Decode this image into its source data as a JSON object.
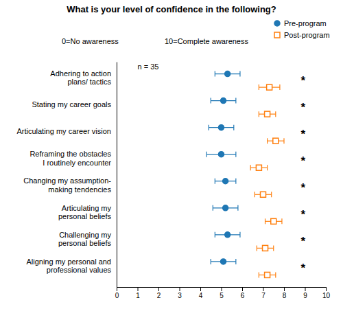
{
  "chart_data": {
    "type": "dot",
    "orientation": "horizontal",
    "title": "What is your level of confidence in the following?",
    "subtitle": [
      "0=No awareness",
      "10=Complete awareness"
    ],
    "categories": [
      "Adhering to action\nplans/ tactics",
      "Stating my career goals",
      "Articulating my career vision",
      "Reframing the obstacles\nI routinely encounter",
      "Changing my assumption-\nmaking tendencies",
      "Articulating my\npersonal beliefs",
      "Challenging my\npersonal beliefs",
      "Aligning my personal and\nprofessional values"
    ],
    "series": [
      {
        "name": "Pre-program",
        "marker": "circle",
        "values": [
          5.3,
          5.1,
          5.0,
          5.0,
          5.2,
          5.2,
          5.3,
          5.1
        ],
        "ci_lo": [
          4.7,
          4.5,
          4.4,
          4.3,
          4.7,
          4.6,
          4.7,
          4.5
        ],
        "ci_hi": [
          5.9,
          5.7,
          5.6,
          5.7,
          5.7,
          5.8,
          5.9,
          5.7
        ]
      },
      {
        "name": "Post-program",
        "marker": "open-square",
        "values": [
          7.3,
          7.2,
          7.6,
          6.8,
          7.0,
          7.5,
          7.1,
          7.2
        ],
        "ci_lo": [
          6.8,
          6.8,
          7.2,
          6.4,
          6.6,
          7.1,
          6.7,
          6.8
        ],
        "ci_hi": [
          7.8,
          7.6,
          8.0,
          7.2,
          7.4,
          7.9,
          7.5,
          7.6
        ]
      }
    ],
    "annotations": [
      {
        "text": "n = 35",
        "x": 1
      },
      {
        "text": "*",
        "x": 8.8,
        "category": "Adhering to action\nplans/ tactics"
      },
      {
        "text": "*",
        "x": 8.8,
        "category": "Stating my career goals"
      },
      {
        "text": "*",
        "x": 8.8,
        "category": "Articulating my career vision"
      },
      {
        "text": "*",
        "x": 8.8,
        "category": "Reframing the obstacles\nI routinely encounter"
      },
      {
        "text": "*",
        "x": 8.8,
        "category": "Changing my assumption-\nmaking tendencies"
      },
      {
        "text": "*",
        "x": 8.8,
        "category": "Articulating my\npersonal beliefs"
      },
      {
        "text": "*",
        "x": 8.8,
        "category": "Challenging my\npersonal beliefs"
      },
      {
        "text": "*",
        "x": 8.8,
        "category": "Aligning my personal and\nprofessional values"
      }
    ],
    "xlim": [
      0,
      10
    ],
    "xticks": [
      0,
      1,
      2,
      3,
      4,
      5,
      6,
      7,
      8,
      9,
      10
    ],
    "legend": "top-right",
    "grid": false
  }
}
